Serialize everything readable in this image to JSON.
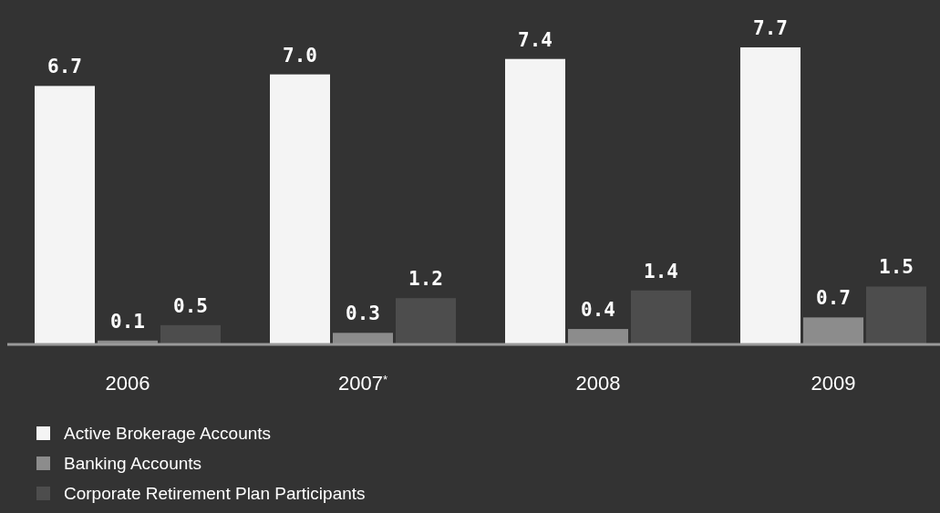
{
  "chart_data": {
    "type": "bar",
    "categories": [
      "2006",
      "2007$^{*}$",
      "2008",
      "2009"
    ],
    "series": [
      {
        "name": "Active Brokerage Accounts",
        "color": "#f4f4f4",
        "values": [
          6.7,
          7.0,
          7.4,
          7.7
        ],
        "value_labels": [
          "6.7",
          "7.0",
          "7.4",
          "7.7"
        ]
      },
      {
        "name": "Banking Accounts",
        "color": "#8c8c8c",
        "values": [
          0.1,
          0.3,
          0.4,
          0.7
        ]
      },
      {
        "name": "Corporate Retirement Plan Participants",
        "color": "#4d4d4d",
        "values": [
          0.5,
          1.2,
          1.4,
          1.5
        ]
      }
    ],
    "data_labels": true,
    "legend": "bottom left"
  }
}
